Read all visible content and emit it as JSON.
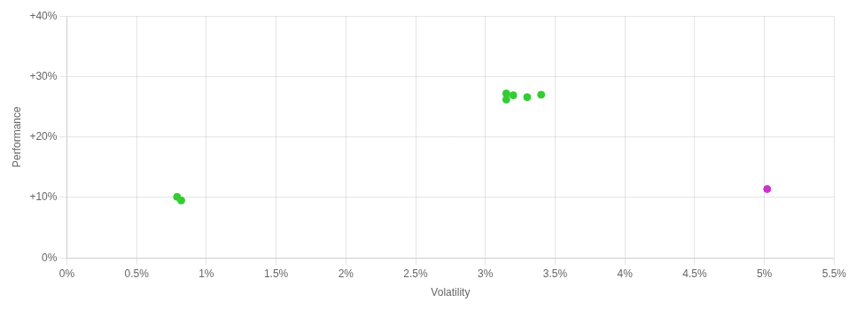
{
  "chart_data": {
    "type": "scatter",
    "xlabel": "Volatility",
    "ylabel": "Performance",
    "xlim": [
      0.0,
      0.055
    ],
    "ylim": [
      0.0,
      0.4
    ],
    "xticks": [
      {
        "value": 0.0,
        "label": "0%"
      },
      {
        "value": 0.005,
        "label": "0.5%"
      },
      {
        "value": 0.01,
        "label": "1%"
      },
      {
        "value": 0.015,
        "label": "1.5%"
      },
      {
        "value": 0.02,
        "label": "2%"
      },
      {
        "value": 0.025,
        "label": "2.5%"
      },
      {
        "value": 0.03,
        "label": "3%"
      },
      {
        "value": 0.035,
        "label": "3.5%"
      },
      {
        "value": 0.04,
        "label": "4%"
      },
      {
        "value": 0.045,
        "label": "4.5%"
      },
      {
        "value": 0.05,
        "label": "5%"
      },
      {
        "value": 0.055,
        "label": "5.5%"
      }
    ],
    "yticks": [
      {
        "value": 0.0,
        "label": "0%"
      },
      {
        "value": 0.1,
        "label": "+10%"
      },
      {
        "value": 0.2,
        "label": "+20%"
      },
      {
        "value": 0.3,
        "label": "+30%"
      },
      {
        "value": 0.4,
        "label": "+40%"
      }
    ],
    "grid": true,
    "series": [
      {
        "color": "#33cc33",
        "x": [
          0.0315,
          0.032,
          0.033,
          0.0315,
          0.034,
          0.0079,
          0.0082
        ],
        "values": [
          0.272,
          0.269,
          0.266,
          0.262,
          0.27,
          0.101,
          0.095
        ]
      },
      {
        "color": "#cc33cc",
        "x": [
          0.0502
        ],
        "values": [
          0.114
        ]
      }
    ]
  }
}
